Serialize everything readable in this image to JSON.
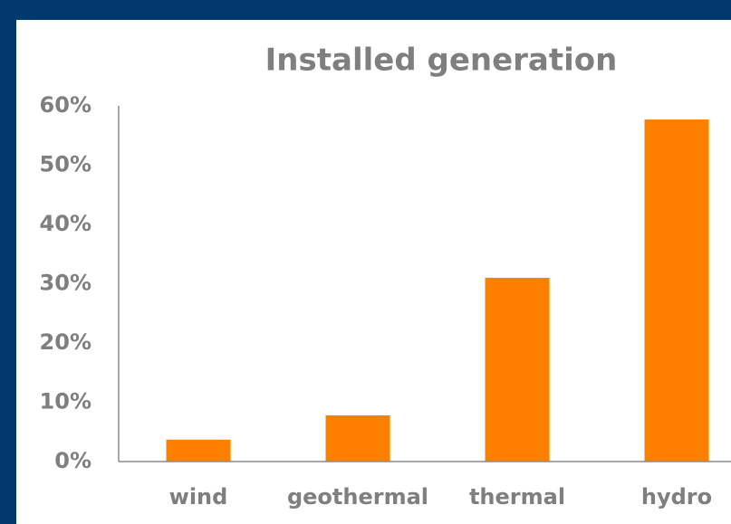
{
  "chart_data": {
    "type": "bar",
    "title": "Installed generation",
    "categories": [
      "wind",
      "geothermal",
      "thermal",
      "hydro"
    ],
    "values": [
      3.7,
      7.8,
      31,
      57.7
    ],
    "color": "#ff8000",
    "ylim": [
      0,
      60
    ],
    "yticks": [
      {
        "value": 0,
        "label": "0%"
      },
      {
        "value": 10,
        "label": "10%"
      },
      {
        "value": 20,
        "label": "20%"
      },
      {
        "value": 30,
        "label": "30%"
      },
      {
        "value": 40,
        "label": "40%"
      },
      {
        "value": 50,
        "label": "50%"
      },
      {
        "value": 60,
        "label": "60%"
      }
    ],
    "grid": false
  }
}
